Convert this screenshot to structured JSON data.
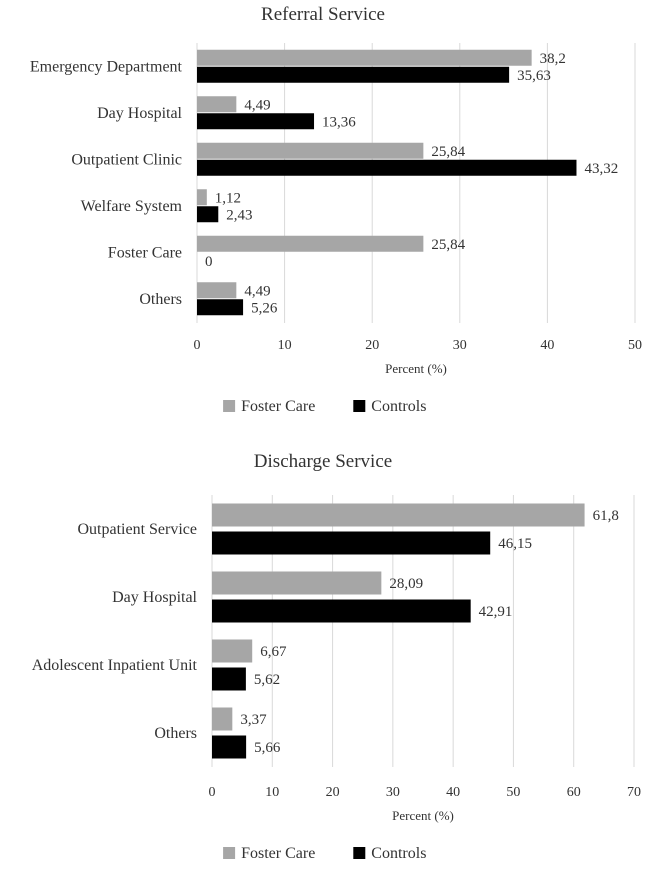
{
  "chart_data": [
    {
      "type": "bar",
      "orientation": "horizontal",
      "title": "Referral Service",
      "xlabel": "Percent (%)",
      "ylabel": "",
      "categories": [
        "Emergency Department",
        "Day Hospital",
        "Outpatient Clinic",
        "Welfare System",
        "Foster Care",
        "Others"
      ],
      "series": [
        {
          "name": "Foster Care",
          "color": "#a6a6a6",
          "values": [
            38.2,
            4.49,
            25.84,
            1.12,
            25.84,
            4.49
          ],
          "labels": [
            "38,2",
            "4,49",
            "25,84",
            "1,12",
            "25,84",
            "4,49"
          ]
        },
        {
          "name": "Controls",
          "color": "#000000",
          "values": [
            35.63,
            13.36,
            43.32,
            2.43,
            0,
            5.26
          ],
          "labels": [
            "35,63",
            "13,36",
            "43,32",
            "2,43",
            "0",
            "5,26"
          ]
        }
      ],
      "xlim": [
        0,
        50
      ],
      "xticks": [
        0,
        10,
        20,
        30,
        40,
        50
      ],
      "grid": true,
      "legend_position": "bottom"
    },
    {
      "type": "bar",
      "orientation": "horizontal",
      "title": "Discharge Service",
      "xlabel": "Percent (%)",
      "ylabel": "",
      "categories": [
        "Outpatient Service",
        "Day Hospital",
        "Adolescent Inpatient Unit",
        "Others"
      ],
      "series": [
        {
          "name": "Foster Care",
          "color": "#a6a6a6",
          "values": [
            61.8,
            28.09,
            6.67,
            3.37
          ],
          "labels": [
            "61,8",
            "28,09",
            "6,67",
            "3,37"
          ]
        },
        {
          "name": "Controls",
          "color": "#000000",
          "values": [
            46.15,
            42.91,
            5.62,
            5.66
          ],
          "labels": [
            "46,15",
            "42,91",
            "5,62",
            "5,66"
          ]
        }
      ],
      "xlim": [
        0,
        70
      ],
      "xticks": [
        0,
        10,
        20,
        30,
        40,
        50,
        60,
        70
      ],
      "grid": true,
      "legend_position": "bottom"
    }
  ]
}
